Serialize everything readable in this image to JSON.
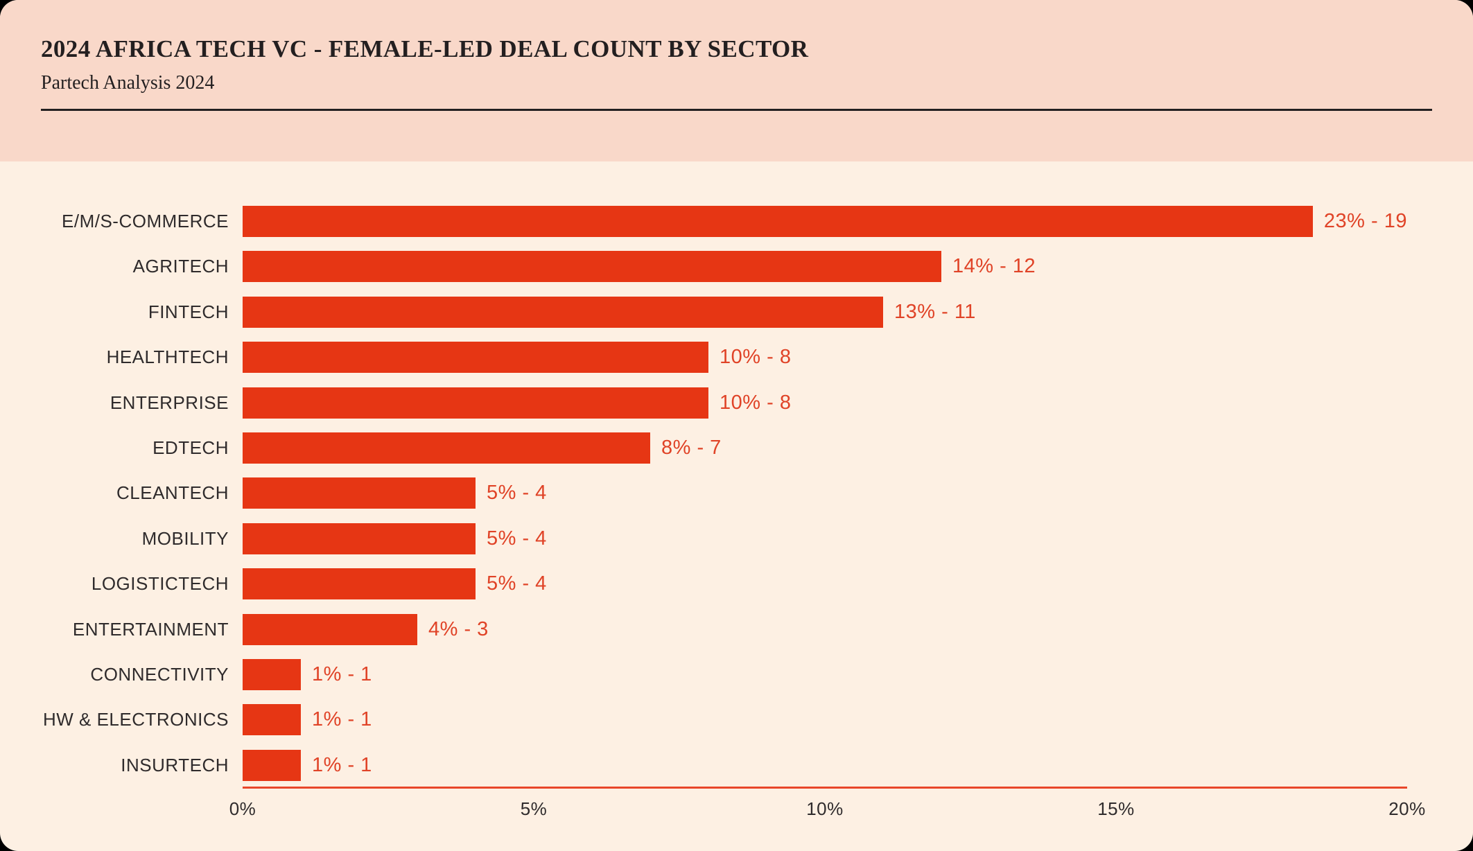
{
  "header": {
    "title": "2024 AFRICA TECH VC - FEMALE-LED DEAL COUNT BY SECTOR",
    "subtitle": "Partech Analysis 2024"
  },
  "colors": {
    "outside_bg": "#000000",
    "header_bg": "#f9d8c9",
    "body_bg": "#fdf0e3",
    "bar": "#e63614",
    "value_text": "#e04327",
    "axis_line": "#e8462a",
    "title_text": "#231f20",
    "label_text": "#2f2b2c"
  },
  "chart_data": {
    "type": "bar",
    "orientation": "horizontal",
    "title": "2024 AFRICA TECH VC - FEMALE-LED DEAL COUNT BY SECTOR",
    "subtitle": "Partech Analysis 2024",
    "categories": [
      "E/M/S-COMMERCE",
      "AGRITECH",
      "FINTECH",
      "HEALTHTECH",
      "ENTERPRISE",
      "EDTECH",
      "CLEANTECH",
      "MOBILITY",
      "LOGISTICTECH",
      "ENTERTAINMENT",
      "CONNECTIVITY",
      "HW & ELECTRONICS",
      "INSURTECH"
    ],
    "series": [
      {
        "name": "share_pct",
        "values": [
          23,
          14,
          13,
          10,
          10,
          8,
          5,
          5,
          5,
          4,
          1,
          1,
          1
        ]
      },
      {
        "name": "deal_count",
        "values": [
          19,
          12,
          11,
          8,
          8,
          7,
          4,
          4,
          4,
          3,
          1,
          1,
          1
        ]
      }
    ],
    "value_labels": [
      "23% - 19",
      "14% - 12",
      "13% - 11",
      "10% - 8",
      "10% - 8",
      "8% - 7",
      "5% - 4",
      "5% - 4",
      "5% - 4",
      "4% - 3",
      "1% - 1",
      "1% - 1",
      "1% - 1"
    ],
    "bar_length_series": "deal_count",
    "xlabel": "",
    "ylabel": "",
    "xlim": [
      0,
      20
    ],
    "x_tick_labels": [
      "0%",
      "5%",
      "10%",
      "15%",
      "20%"
    ],
    "x_tick_values": [
      0,
      5,
      10,
      15,
      20
    ],
    "grid": false,
    "legend": false
  }
}
